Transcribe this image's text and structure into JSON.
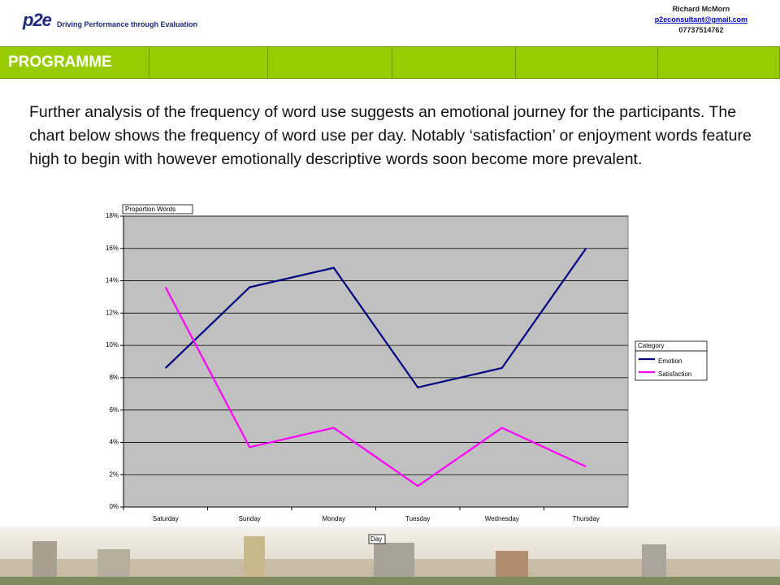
{
  "header": {
    "logo": "p2e",
    "tagline": "Driving Performance through Evaluation",
    "name": "Richard McMorn",
    "email": "p2econsultant@gmail.com",
    "phone": "07737514762"
  },
  "nav": {
    "title": "PROGRAMME"
  },
  "body": {
    "text": "Further analysis of the frequency of word use suggests an emotional journey for the participants. The chart below shows the frequency of word use per day. Notably ‘satisfaction’ or enjoyment words feature high to begin with however emotionally descriptive words soon become more prevalent."
  },
  "chart_data": {
    "type": "line",
    "y_label": "Proportion Words",
    "x_label": "Day",
    "legend_title": "Category",
    "categories": [
      "Saturday",
      "Sunday",
      "Monday",
      "Tuesday",
      "Wednesday",
      "Thursday"
    ],
    "series": [
      {
        "name": "Emotion",
        "color": "#000080",
        "values": [
          8.6,
          13.6,
          14.8,
          7.4,
          8.6,
          16.0
        ]
      },
      {
        "name": "Satisfaction",
        "color": "#ff00ff",
        "values": [
          13.6,
          3.7,
          4.9,
          1.3,
          4.9,
          2.5
        ]
      }
    ],
    "ylim": [
      0,
      18
    ],
    "yticks": [
      {
        "value": 0,
        "label": "0%"
      },
      {
        "value": 2,
        "label": "2%"
      },
      {
        "value": 4,
        "label": "4%"
      },
      {
        "value": 6,
        "label": "6%"
      },
      {
        "value": 8,
        "label": "8%"
      },
      {
        "value": 10,
        "label": "10%"
      },
      {
        "value": 12,
        "label": "12%"
      },
      {
        "value": 14,
        "label": "14%"
      },
      {
        "value": 16,
        "label": "16%"
      },
      {
        "value": 18,
        "label": "18%"
      }
    ],
    "grid": true,
    "legend": "right"
  }
}
